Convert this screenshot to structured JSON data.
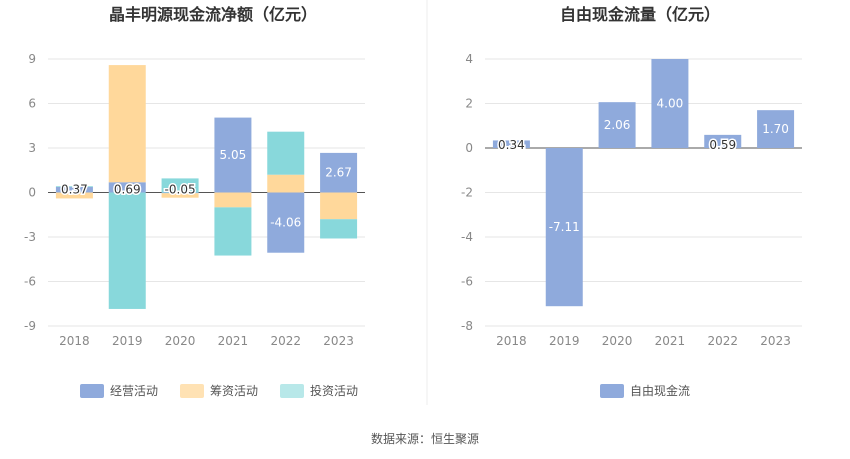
{
  "source": "数据来源：恒生聚源",
  "chart_data": [
    {
      "type": "bar",
      "stacked": true,
      "title": "晶丰明源现金流净额（亿元）",
      "categories": [
        "2018",
        "2019",
        "2020",
        "2021",
        "2022",
        "2023"
      ],
      "ylim": [
        -9,
        9
      ],
      "yticks": [
        9,
        6,
        3,
        0,
        -3,
        -6,
        -9
      ],
      "grid": true,
      "legend_position": "bottom",
      "series": [
        {
          "name": "经营活动",
          "color": "#8FAADC",
          "values": [
            0.37,
            0.69,
            -0.05,
            5.05,
            -4.06,
            2.67
          ]
        },
        {
          "name": "筹资活动",
          "color": "#FFD89B",
          "values": [
            -0.4,
            7.9,
            -0.3,
            -1.0,
            1.2,
            -1.8
          ]
        },
        {
          "name": "投资活动",
          "color": "#88D8DB",
          "values": [
            0.05,
            -7.85,
            0.95,
            -3.25,
            2.9,
            -1.3
          ]
        }
      ],
      "data_labels": [
        {
          "category": "2018",
          "series": "经营活动",
          "text": "0.37"
        },
        {
          "category": "2019",
          "series": "经营活动",
          "text": "0.69"
        },
        {
          "category": "2020",
          "series": "经营活动",
          "text": "-0.05"
        },
        {
          "category": "2021",
          "series": "经营活动",
          "text": "5.05"
        },
        {
          "category": "2022",
          "series": "经营活动",
          "text": "-4.06"
        },
        {
          "category": "2023",
          "series": "经营活动",
          "text": "2.67"
        }
      ]
    },
    {
      "type": "bar",
      "title": "自由现金流量（亿元）",
      "categories": [
        "2018",
        "2019",
        "2020",
        "2021",
        "2022",
        "2023"
      ],
      "ylim": [
        -8,
        4
      ],
      "yticks": [
        4,
        2,
        0,
        -2,
        -4,
        -6,
        -8
      ],
      "grid": true,
      "legend_position": "bottom",
      "series": [
        {
          "name": "自由现金流",
          "color": "#8FAADC",
          "values": [
            0.34,
            -7.11,
            2.06,
            4.0,
            0.59,
            1.7
          ]
        }
      ],
      "data_labels": [
        {
          "category": "2018",
          "series": "自由现金流",
          "text": "0.34"
        },
        {
          "category": "2019",
          "series": "自由现金流",
          "text": "-7.11"
        },
        {
          "category": "2020",
          "series": "自由现金流",
          "text": "2.06"
        },
        {
          "category": "2021",
          "series": "自由现金流",
          "text": "4.00"
        },
        {
          "category": "2022",
          "series": "自由现金流",
          "text": "0.59"
        },
        {
          "category": "2023",
          "series": "自由现金流",
          "text": "1.70"
        }
      ]
    }
  ]
}
